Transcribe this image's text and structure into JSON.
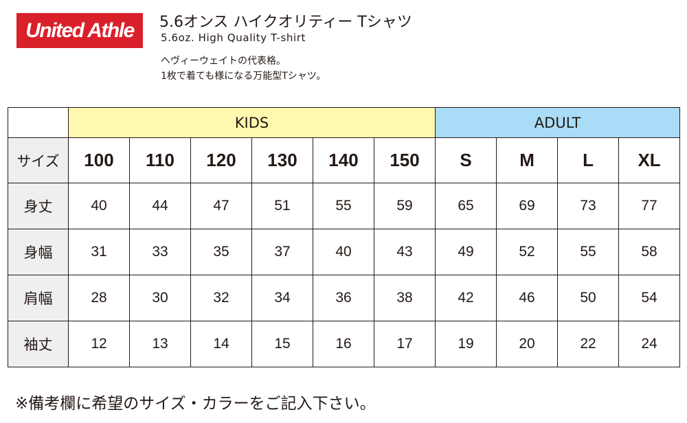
{
  "brand": {
    "logo_text": "United Athle"
  },
  "product": {
    "title_jp": "5.6オンス ハイクオリティー Tシャツ",
    "title_en": "5.6oz. High Quality T-shirt",
    "description_lines": [
      "ヘヴィーウェイトの代表格。",
      "1枚で着ても様になる万能型Tシャツ。"
    ]
  },
  "size_table": {
    "group_headers": {
      "kids": "KIDS",
      "adult": "ADULT"
    },
    "size_label": "サイズ",
    "sizes": [
      "100",
      "110",
      "120",
      "130",
      "140",
      "150",
      "S",
      "M",
      "L",
      "XL"
    ],
    "rows": [
      {
        "label": "身丈",
        "values": [
          "40",
          "44",
          "47",
          "51",
          "55",
          "59",
          "65",
          "69",
          "73",
          "77"
        ]
      },
      {
        "label": "身幅",
        "values": [
          "31",
          "33",
          "35",
          "37",
          "40",
          "43",
          "49",
          "52",
          "55",
          "58"
        ]
      },
      {
        "label": "肩幅",
        "values": [
          "28",
          "30",
          "32",
          "34",
          "36",
          "38",
          "42",
          "46",
          "50",
          "54"
        ]
      },
      {
        "label": "袖丈",
        "values": [
          "12",
          "13",
          "14",
          "15",
          "16",
          "17",
          "19",
          "20",
          "22",
          "24"
        ]
      }
    ]
  },
  "footer_note": "※備考欄に希望のサイズ・カラーをご記入下さい。"
}
